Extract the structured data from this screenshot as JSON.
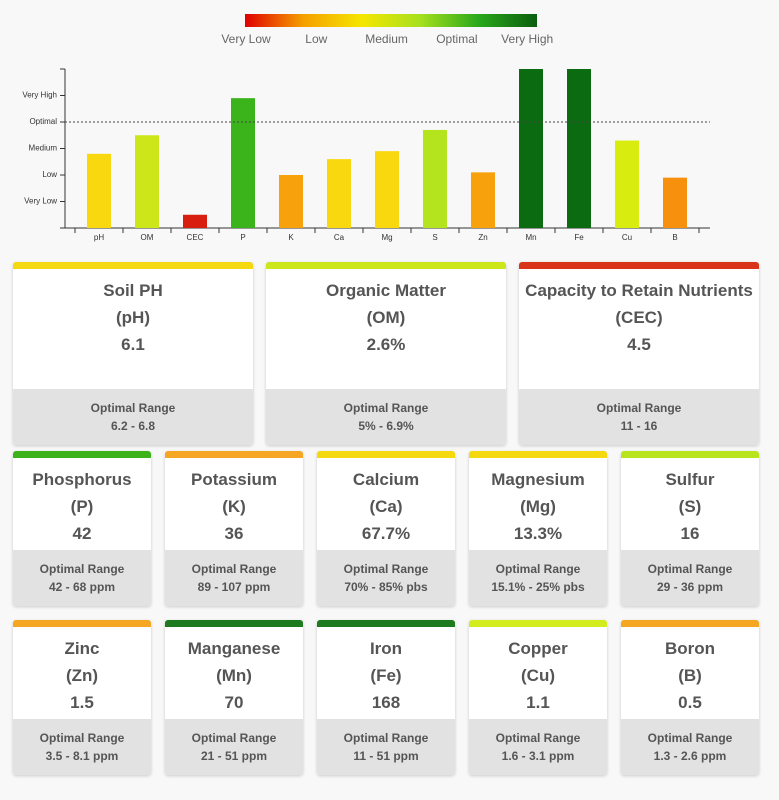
{
  "legend": {
    "labels": [
      "Very Low",
      "Low",
      "Medium",
      "Optimal",
      "Very High"
    ],
    "gradient": [
      "#e00000",
      "#f5a000",
      "#f5e600",
      "#a6e01e",
      "#29a81a",
      "#0b5e0e"
    ]
  },
  "chart_data": {
    "type": "bar",
    "categories": [
      "pH",
      "OM",
      "CEC",
      "P",
      "K",
      "Ca",
      "Mg",
      "S",
      "Zn",
      "Mn",
      "Fe",
      "Cu",
      "B"
    ],
    "values": [
      2.8,
      3.5,
      0.5,
      4.9,
      2.0,
      2.6,
      2.9,
      3.7,
      2.1,
      6,
      6,
      3.3,
      1.9
    ],
    "colors": [
      "#fad80f",
      "#cce61a",
      "#d81e0e",
      "#3bb31a",
      "#f7a10c",
      "#fad80f",
      "#fad80f",
      "#b4e41e",
      "#f7a10c",
      "#0b6b10",
      "#0b6b10",
      "#d8ec10",
      "#f7900c"
    ],
    "ylim": [
      0,
      6
    ],
    "yticks": [
      {
        "value": 1,
        "label": "Very Low"
      },
      {
        "value": 2,
        "label": "Low"
      },
      {
        "value": 3,
        "label": "Medium"
      },
      {
        "value": 4,
        "label": "Optimal"
      },
      {
        "value": 5,
        "label": "Very High"
      }
    ],
    "reference_line": 4
  },
  "cards": [
    {
      "title": "Soil PH",
      "symbol": "(pH)",
      "value": "6.1",
      "range_label": "Optimal Range",
      "range": "6.2 - 6.8",
      "color": "#f5d90f"
    },
    {
      "title": "Organic Matter",
      "symbol": "(OM)",
      "value": "2.6%",
      "range_label": "Optimal Range",
      "range": "5% - 6.9%",
      "color": "#cde61a"
    },
    {
      "title": "Capacity to Retain Nutrients",
      "symbol": "(CEC)",
      "value": "4.5",
      "range_label": "Optimal Range",
      "range": "11 - 16",
      "color": "#d9351a"
    },
    {
      "title": "Phosphorus",
      "symbol": "(P)",
      "value": "42",
      "range_label": "Optimal Range",
      "range": "42 - 68 ppm",
      "color": "#3cb31a"
    },
    {
      "title": "Potassium",
      "symbol": "(K)",
      "value": "36",
      "range_label": "Optimal Range",
      "range": "89 - 107 ppm",
      "color": "#f5a623"
    },
    {
      "title": "Calcium",
      "symbol": "(Ca)",
      "value": "67.7%",
      "range_label": "Optimal Range",
      "range": "70% - 85% pbs",
      "color": "#f5d90f"
    },
    {
      "title": "Magnesium",
      "symbol": "(Mg)",
      "value": "13.3%",
      "range_label": "Optimal Range",
      "range": "15.1% - 25% pbs",
      "color": "#f5d90f"
    },
    {
      "title": "Sulfur",
      "symbol": "(S)",
      "value": "16",
      "range_label": "Optimal Range",
      "range": "29 - 36 ppm",
      "color": "#b8e41e"
    },
    {
      "title": "Zinc",
      "symbol": "(Zn)",
      "value": "1.5",
      "range_label": "Optimal Range",
      "range": "3.5 - 8.1 ppm",
      "color": "#f5a623"
    },
    {
      "title": "Manganese",
      "symbol": "(Mn)",
      "value": "70",
      "range_label": "Optimal Range",
      "range": "21 - 51 ppm",
      "color": "#1e7a1e"
    },
    {
      "title": "Iron",
      "symbol": "(Fe)",
      "value": "168",
      "range_label": "Optimal Range",
      "range": "11 - 51 ppm",
      "color": "#1e7a1e"
    },
    {
      "title": "Copper",
      "symbol": "(Cu)",
      "value": "1.1",
      "range_label": "Optimal Range",
      "range": "1.6 - 3.1 ppm",
      "color": "#d2ec1e"
    },
    {
      "title": "Boron",
      "symbol": "(B)",
      "value": "0.5",
      "range_label": "Optimal Range",
      "range": "1.3 - 2.6 ppm",
      "color": "#f5a623"
    }
  ]
}
